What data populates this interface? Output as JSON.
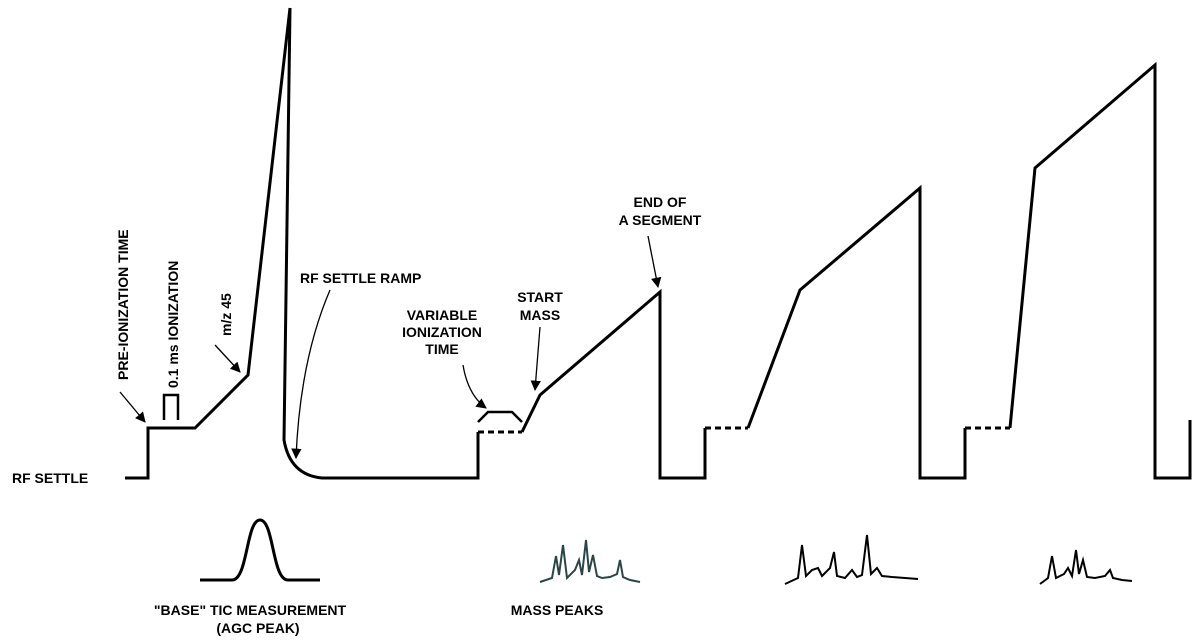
{
  "labels": {
    "rf_settle": "RF SETTLE",
    "pre_ionization": "PRE-IONIZATION TIME",
    "ionization": "0.1 ms IONIZATION",
    "mz": "m/z 45",
    "rf_settle_ramp": "RF SETTLE RAMP",
    "variable": [
      "VARIABLE",
      "IONIZATION",
      "TIME"
    ],
    "start_mass": [
      "START",
      "MASS"
    ],
    "end_segment": [
      "END OF",
      "A SEGMENT"
    ],
    "base_tic": [
      "\"BASE\" TIC MEASUREMENT",
      "(AGC PEAK)"
    ],
    "mass_peaks": "MASS PEAKS"
  }
}
